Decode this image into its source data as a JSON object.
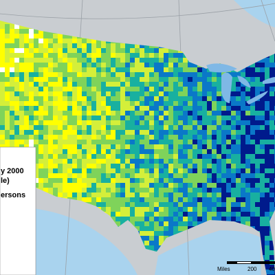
{
  "legend": {
    "lines": [
      "y 2000",
      "le)",
      "ersons"
    ]
  },
  "scale_bar": {
    "unit": "Miles",
    "labels": [
      "200",
      "40"
    ]
  }
}
